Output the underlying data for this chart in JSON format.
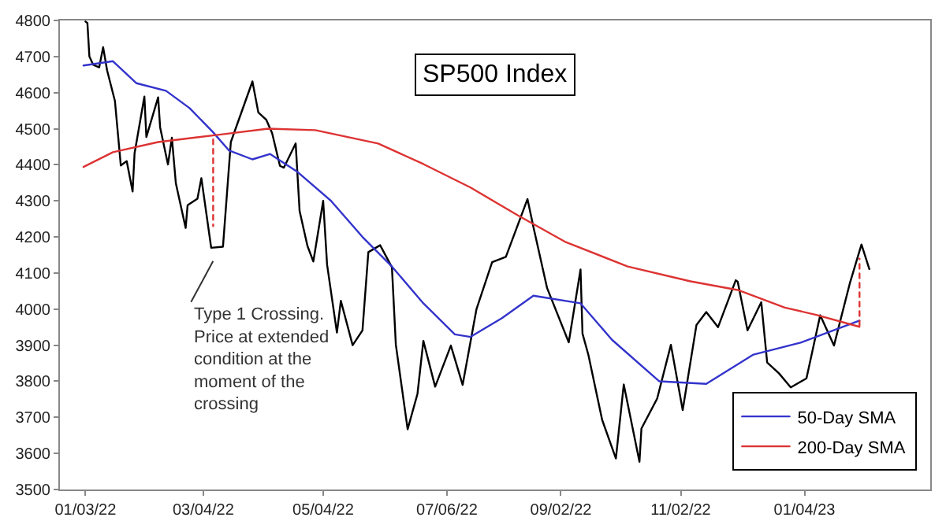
{
  "chart_data": {
    "type": "line",
    "title": "SP500 Index",
    "xlim": [
      "2021-12-21",
      "2023-03-09"
    ],
    "xticks": [
      {
        "value": "2022-01-03",
        "label": "01/03/22"
      },
      {
        "value": "2022-03-04",
        "label": "03/04/22"
      },
      {
        "value": "2022-05-04",
        "label": "05/04/22"
      },
      {
        "value": "2022-07-06",
        "label": "07/06/22"
      },
      {
        "value": "2022-09-02",
        "label": "09/02/22"
      },
      {
        "value": "2022-11-02",
        "label": "11/02/22"
      },
      {
        "value": "2023-01-04",
        "label": "01/04/23"
      }
    ],
    "ylim": [
      3500,
      4800
    ],
    "yticks": [
      3500,
      3600,
      3700,
      3800,
      3900,
      4000,
      4100,
      4200,
      4300,
      4400,
      4500,
      4600,
      4700,
      4800
    ],
    "grid": false,
    "legend": "bottom right",
    "marker": "none",
    "line_style": "solid",
    "annotations": [
      "Type 1 Crossing.\nPrice at extended\ncondition at the\nmoment of the\ncrossing"
    ],
    "series": [
      {
        "color": "#000000",
        "x": [
          "2022-01-03",
          "2022-01-04",
          "2022-01-05",
          "2022-01-07",
          "2022-01-10",
          "2022-01-12",
          "2022-01-14",
          "2022-01-18",
          "2022-01-21",
          "2022-01-24",
          "2022-01-27",
          "2022-01-28",
          "2022-02-02",
          "2022-02-03",
          "2022-02-09",
          "2022-02-10",
          "2022-02-14",
          "2022-02-16",
          "2022-02-18",
          "2022-02-23",
          "2022-02-24",
          "2022-03-01",
          "2022-03-03",
          "2022-03-08",
          "2022-03-14",
          "2022-03-18",
          "2022-03-29",
          "2022-04-01",
          "2022-04-05",
          "2022-04-08",
          "2022-04-12",
          "2022-04-14",
          "2022-04-20",
          "2022-04-22",
          "2022-04-26",
          "2022-04-29",
          "2022-05-04",
          "2022-05-06",
          "2022-05-11",
          "2022-05-13",
          "2022-05-19",
          "2022-05-24",
          "2022-05-27",
          "2022-06-02",
          "2022-06-08",
          "2022-06-10",
          "2022-06-16",
          "2022-06-21",
          "2022-06-24",
          "2022-06-30",
          "2022-07-08",
          "2022-07-14",
          "2022-07-21",
          "2022-07-29",
          "2022-08-05",
          "2022-08-16",
          "2022-08-19",
          "2022-08-26",
          "2022-09-06",
          "2022-09-12",
          "2022-09-13",
          "2022-09-16",
          "2022-09-23",
          "2022-09-30",
          "2022-10-04",
          "2022-10-12",
          "2022-10-13",
          "2022-10-21",
          "2022-10-28",
          "2022-11-03",
          "2022-11-10",
          "2022-11-15",
          "2022-11-21",
          "2022-11-30",
          "2022-12-01",
          "2022-12-06",
          "2022-12-13",
          "2022-12-16",
          "2022-12-22",
          "2022-12-28",
          "2023-01-05",
          "2023-01-12",
          "2023-01-19",
          "2023-01-27",
          "2023-02-02",
          "2023-02-06"
        ],
        "values": [
          4797,
          4793,
          4700,
          4677,
          4670,
          4726,
          4662,
          4577,
          4398,
          4410,
          4326,
          4432,
          4589,
          4477,
          4587,
          4504,
          4401,
          4475,
          4349,
          4225,
          4288,
          4306,
          4363,
          4170,
          4173,
          4463,
          4631,
          4545,
          4525,
          4488,
          4397,
          4392,
          4459,
          4272,
          4175,
          4132,
          4300,
          4123,
          3935,
          4023,
          3900,
          3941,
          4158,
          4177,
          4116,
          3901,
          3667,
          3765,
          3912,
          3785,
          3899,
          3790,
          3999,
          4130,
          4145,
          4305,
          4228,
          4058,
          3908,
          4110,
          3932,
          3873,
          3693,
          3586,
          3791,
          3577,
          3669,
          3752,
          3901,
          3720,
          3956,
          3992,
          3950,
          4080,
          4076,
          3941,
          4019,
          3852,
          3822,
          3783,
          3808,
          3983,
          3899,
          4070,
          4179,
          4111
        ]
      },
      {
        "name": "50-Day SMA",
        "color": "#3333cc",
        "x": [
          "2022-01-02",
          "2022-01-17",
          "2022-01-29",
          "2022-02-13",
          "2022-02-25",
          "2022-03-09",
          "2022-03-17",
          "2022-03-29",
          "2022-04-07",
          "2022-04-21",
          "2022-05-08",
          "2022-05-24",
          "2022-06-08",
          "2022-06-24",
          "2022-07-10",
          "2022-07-18",
          "2022-08-03",
          "2022-08-19",
          "2022-09-12",
          "2022-09-28",
          "2022-10-22",
          "2022-11-15",
          "2022-12-09",
          "2023-01-02",
          "2023-02-01"
        ],
        "values": [
          4675,
          4687,
          4626,
          4605,
          4557,
          4490,
          4440,
          4415,
          4430,
          4380,
          4300,
          4200,
          4118,
          4016,
          3930,
          3923,
          3975,
          4037,
          4016,
          3915,
          3800,
          3793,
          3874,
          3907,
          3968
        ]
      },
      {
        "name": "200-Day SMA",
        "color": "#dd3333",
        "x": [
          "2022-01-02",
          "2022-01-17",
          "2022-02-09",
          "2022-03-13",
          "2022-04-06",
          "2022-04-30",
          "2022-06-01",
          "2022-06-24",
          "2022-07-18",
          "2022-08-11",
          "2022-09-04",
          "2022-10-06",
          "2022-11-07",
          "2022-12-01",
          "2022-12-25",
          "2023-01-10",
          "2023-02-01"
        ],
        "values": [
          4394,
          4435,
          4463,
          4484,
          4500,
          4496,
          4459,
          4402,
          4337,
          4260,
          4187,
          4118,
          4077,
          4053,
          4004,
          3984,
          3951
        ]
      },
      {
        "color": "#dd3333",
        "line_style": "dotted",
        "x": [
          "2022-03-09",
          "2022-03-09"
        ],
        "values": [
          4470,
          4230
        ]
      },
      {
        "color": "#dd3333",
        "line_style": "dotted",
        "x": [
          "2023-02-01",
          "2023-02-01"
        ],
        "values": [
          3955,
          4140
        ]
      }
    ]
  }
}
